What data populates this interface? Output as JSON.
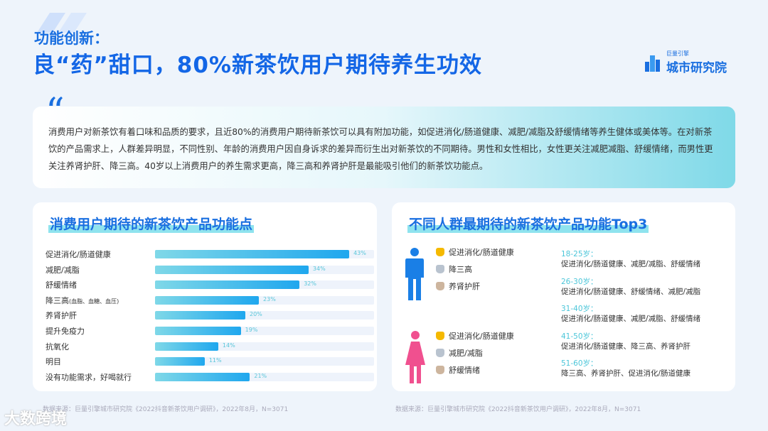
{
  "header": {
    "subtitle": "功能创新：",
    "title": "良“药”甜口，80%新茶饮用户期待养生功效",
    "logo_small": "巨量引擎",
    "logo_big": "城市研究院"
  },
  "intro": {
    "text": "消费用户对新茶饮有着口味和品质的要求，且近80%的消费用户期待新茶饮可以具有附加功能，如促进消化/肠道健康、减肥/减脂及舒缓情绪等养生健体或美体等。在对新茶饮的产品需求上，人群差异明显，不同性别、年龄的消费用户因自身诉求的差异而衍生出对新茶饮的不同期待。男性和女性相比，女性更关注减肥减脂、舒缓情绪，而男性更关注养肾护肝、降三高。40岁以上消费用户的养生需求更高，降三高和养肾护肝是最能吸引他们的新茶饮功能点。"
  },
  "chart_data": {
    "type": "bar",
    "title": "消费用户期待的新茶饮产品功能点",
    "categories": [
      "促进消化/肠道健康",
      "减肥/减脂",
      "舒缓情绪",
      "降三高",
      "养肾护肝",
      "提升免疫力",
      "抗氧化",
      "明目",
      "没有功能需求，好喝就行"
    ],
    "category_notes": [
      "",
      "",
      "",
      "(血脂、血糖、血压)",
      "",
      "",
      "",
      "",
      ""
    ],
    "values": [
      43,
      34,
      32,
      23,
      20,
      19,
      14,
      11,
      21
    ],
    "value_labels": [
      "43%",
      "34%",
      "32%",
      "23%",
      "20%",
      "19%",
      "14%",
      "11%",
      "21%"
    ],
    "colors": {
      "bar_start": "#7fd8e8",
      "bar_end": "#1fa7ee",
      "track": "#eef3fb"
    }
  },
  "top3": {
    "title": "不同人群最期待的新茶饮产品功能Top3",
    "male": {
      "color": "#1a7fe6",
      "items": [
        {
          "label": "促进消化/肠道健康",
          "medal": "gold"
        },
        {
          "label": "降三高",
          "medal": "silver"
        },
        {
          "label": "养肾护肝",
          "medal": "bronze"
        }
      ]
    },
    "female": {
      "color": "#f0508f",
      "items": [
        {
          "label": "促进消化/肠道健康",
          "medal": "gold"
        },
        {
          "label": "减肥/减脂",
          "medal": "silver"
        },
        {
          "label": "舒缓情绪",
          "medal": "bronze"
        }
      ]
    },
    "ages": [
      {
        "age": "18-25岁：",
        "desc": "促进消化/肠道健康、减肥/减脂、舒缓情绪"
      },
      {
        "age": "26-30岁：",
        "desc": "促进消化/肠道健康、舒缓情绪、减肥/减脂"
      },
      {
        "age": "31-40岁：",
        "desc": "促进消化/肠道健康、减肥/减脂、舒缓情绪"
      },
      {
        "age": "41-50岁：",
        "desc": "促进消化/肠道健康、降三高、养肾护肝"
      },
      {
        "age": "51-60岁：",
        "desc": "降三高、养肾护肝、促进消化/肠道健康"
      }
    ]
  },
  "sources": {
    "left": "数据来源：巨量引擎城市研究院《2022抖音新茶饮用户调研》，2022年8月，N=3071",
    "right": "数据来源：巨量引擎城市研究院《2022抖音新茶饮用户调研》，2022年8月，N=3071"
  },
  "watermark": "大数跨境"
}
